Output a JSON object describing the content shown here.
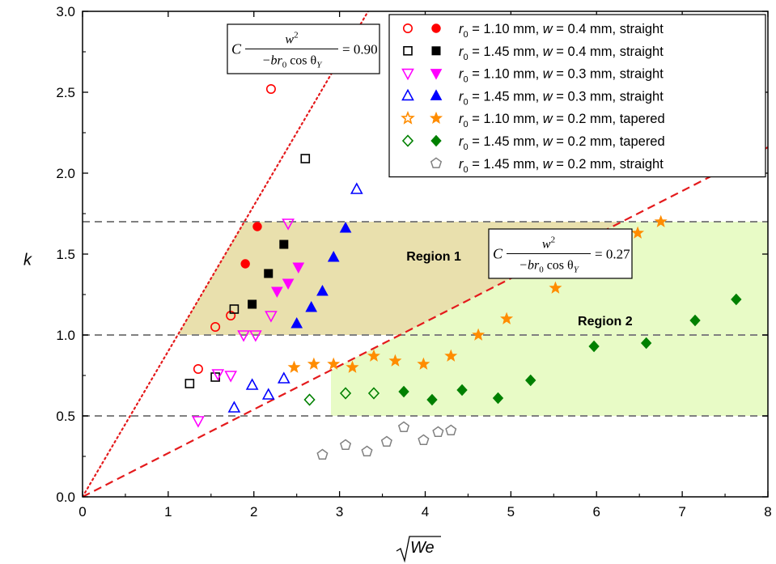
{
  "chart_data": {
    "type": "scatter",
    "xlabel": "√We",
    "ylabel": "k",
    "xlim": [
      0,
      8
    ],
    "ylim": [
      0,
      3.0
    ],
    "x_ticks": [
      "0",
      "1",
      "2",
      "3",
      "4",
      "5",
      "6",
      "7",
      "8"
    ],
    "y_ticks": [
      "0.0",
      "0.5",
      "1.0",
      "1.5",
      "2.0",
      "2.5",
      "3.0"
    ],
    "x_tick_values": [
      0,
      1,
      2,
      3,
      4,
      5,
      6,
      7,
      8
    ],
    "y_tick_values": [
      0.0,
      0.5,
      1.0,
      1.5,
      2.0,
      2.5,
      3.0
    ],
    "grid": false,
    "legend_position": "top-right",
    "reference_lines": [
      {
        "kind": "horizontal",
        "y": 1.7,
        "style": "dashed",
        "color": "#808080"
      },
      {
        "kind": "horizontal",
        "y": 1.0,
        "style": "dashed",
        "color": "#808080"
      },
      {
        "kind": "horizontal",
        "y": 0.5,
        "style": "dashed",
        "color": "#808080"
      },
      {
        "kind": "line_through_origin",
        "slope": 0.9,
        "style": "dotted",
        "color": "#e41a1c"
      },
      {
        "kind": "line_through_origin",
        "slope": 0.27,
        "style": "dashed",
        "color": "#e41a1c"
      }
    ],
    "regions": [
      {
        "label": "Region 1",
        "polygon": [
          [
            1.111,
            1.0
          ],
          [
            1.889,
            1.7
          ],
          [
            6.296,
            1.7
          ],
          [
            3.704,
            1.0
          ]
        ],
        "color": "#e9e0ad"
      },
      {
        "label": "Region 2",
        "polygon": [
          [
            2.9,
            0.5
          ],
          [
            8.0,
            0.5
          ],
          [
            8.0,
            1.7
          ],
          [
            6.296,
            1.7
          ],
          [
            2.9,
            0.783
          ]
        ],
        "color": "#e8fbc6"
      }
    ],
    "annotations": [
      {
        "prefix": "C",
        "numerator": "w",
        "numerator_sup": "2",
        "denominator": "−br",
        "denominator_sub": "0",
        "denominator_tail": "cos θ",
        "denominator_tail_sub": "Y",
        "value": "= 0.90"
      },
      {
        "prefix": "C",
        "numerator": "w",
        "numerator_sup": "2",
        "denominator": "−br",
        "denominator_sub": "0",
        "denominator_tail": "cos θ",
        "denominator_tail_sub": "Y",
        "value": "= 0.27"
      }
    ],
    "legend": [
      {
        "open": "circle",
        "filled": "circle",
        "color": "#ff0000",
        "text": "r₀ = 1.10 mm, w = 0.4 mm, straight",
        "r0": "1.10",
        "w": "0.4",
        "tail": "straight"
      },
      {
        "open": "square",
        "filled": "square",
        "color": "#000000",
        "text": "r₀ = 1.45 mm, w = 0.4 mm, straight",
        "r0": "1.45",
        "w": "0.4",
        "tail": "straight"
      },
      {
        "open": "triangle-down",
        "filled": "triangle-down",
        "color": "#ff00ff",
        "text": "r₀ = 1.10 mm, w = 0.3 mm, straight",
        "r0": "1.10",
        "w": "0.3",
        "tail": "straight"
      },
      {
        "open": "triangle-up",
        "filled": "triangle-up",
        "color": "#0000ff",
        "text": "r₀ = 1.45 mm, w = 0.3 mm, straight",
        "r0": "1.45",
        "w": "0.3",
        "tail": "straight"
      },
      {
        "open": "star",
        "filled": "star",
        "color": "#ff8c00",
        "text": "r₀ = 1.10 mm, w = 0.2 mm, tapered",
        "r0": "1.10",
        "w": "0.2",
        "tail": "tapered"
      },
      {
        "open": "diamond",
        "filled": "diamond",
        "color": "#008000",
        "text": "r₀ = 1.45 mm, w = 0.2 mm, tapered",
        "r0": "1.45",
        "w": "0.2",
        "tail": "tapered"
      },
      {
        "open": null,
        "filled": "pentagon",
        "color": "#808080",
        "text": "r₀ = 1.45 mm, w = 0.2 mm, straight",
        "r0": "1.45",
        "w": "0.2",
        "tail": "straight"
      }
    ],
    "series": [
      {
        "marker": "circle",
        "color": "#ff0000",
        "open": [
          [
            1.35,
            0.79
          ],
          [
            1.55,
            1.05
          ],
          [
            1.73,
            1.12
          ],
          [
            2.2,
            2.52
          ]
        ],
        "filled": [
          [
            1.9,
            1.44
          ],
          [
            2.04,
            1.67
          ]
        ]
      },
      {
        "marker": "square",
        "color": "#000000",
        "open": [
          [
            1.25,
            0.7
          ],
          [
            1.55,
            0.74
          ],
          [
            1.77,
            1.16
          ],
          [
            2.6,
            2.09
          ]
        ],
        "filled": [
          [
            1.98,
            1.19
          ],
          [
            2.17,
            1.38
          ],
          [
            2.35,
            1.56
          ]
        ]
      },
      {
        "marker": "triangle-down",
        "color": "#ff00ff",
        "open": [
          [
            1.35,
            0.47
          ],
          [
            1.58,
            0.76
          ],
          [
            1.73,
            0.75
          ],
          [
            1.88,
            1.0
          ],
          [
            2.02,
            1.0
          ],
          [
            2.2,
            1.12
          ],
          [
            2.4,
            1.69
          ]
        ],
        "filled": [
          [
            2.27,
            1.27
          ],
          [
            2.4,
            1.32
          ],
          [
            2.52,
            1.42
          ]
        ]
      },
      {
        "marker": "triangle-up",
        "color": "#0000ff",
        "open": [
          [
            1.77,
            0.55
          ],
          [
            1.98,
            0.69
          ],
          [
            2.17,
            0.63
          ],
          [
            2.35,
            0.73
          ],
          [
            3.2,
            1.9
          ]
        ],
        "filled": [
          [
            2.5,
            1.07
          ],
          [
            2.67,
            1.17
          ],
          [
            2.8,
            1.27
          ],
          [
            2.93,
            1.48
          ],
          [
            3.07,
            1.66
          ]
        ]
      },
      {
        "marker": "star",
        "color": "#ff8c00",
        "filled": [
          [
            2.47,
            0.8
          ],
          [
            2.7,
            0.82
          ],
          [
            2.93,
            0.82
          ],
          [
            3.15,
            0.8
          ],
          [
            3.4,
            0.87
          ],
          [
            3.65,
            0.84
          ],
          [
            3.98,
            0.82
          ],
          [
            4.3,
            0.87
          ],
          [
            4.62,
            1.0
          ],
          [
            4.95,
            1.1
          ],
          [
            5.52,
            1.29
          ],
          [
            6.48,
            1.63
          ],
          [
            6.75,
            1.7
          ]
        ]
      },
      {
        "marker": "diamond",
        "color": "#008000",
        "open": [
          [
            2.65,
            0.6
          ],
          [
            3.07,
            0.64
          ],
          [
            3.4,
            0.64
          ]
        ],
        "filled": [
          [
            3.75,
            0.65
          ],
          [
            4.08,
            0.6
          ],
          [
            4.43,
            0.66
          ],
          [
            4.85,
            0.61
          ],
          [
            5.23,
            0.72
          ],
          [
            5.97,
            0.93
          ],
          [
            6.58,
            0.95
          ],
          [
            7.15,
            1.09
          ],
          [
            7.63,
            1.22
          ]
        ]
      },
      {
        "marker": "pentagon",
        "color": "#808080",
        "open": [
          [
            2.8,
            0.26
          ],
          [
            3.07,
            0.32
          ],
          [
            3.32,
            0.28
          ],
          [
            3.55,
            0.34
          ],
          [
            3.75,
            0.43
          ],
          [
            3.98,
            0.35
          ],
          [
            4.15,
            0.4
          ],
          [
            4.3,
            0.41
          ]
        ]
      }
    ]
  }
}
